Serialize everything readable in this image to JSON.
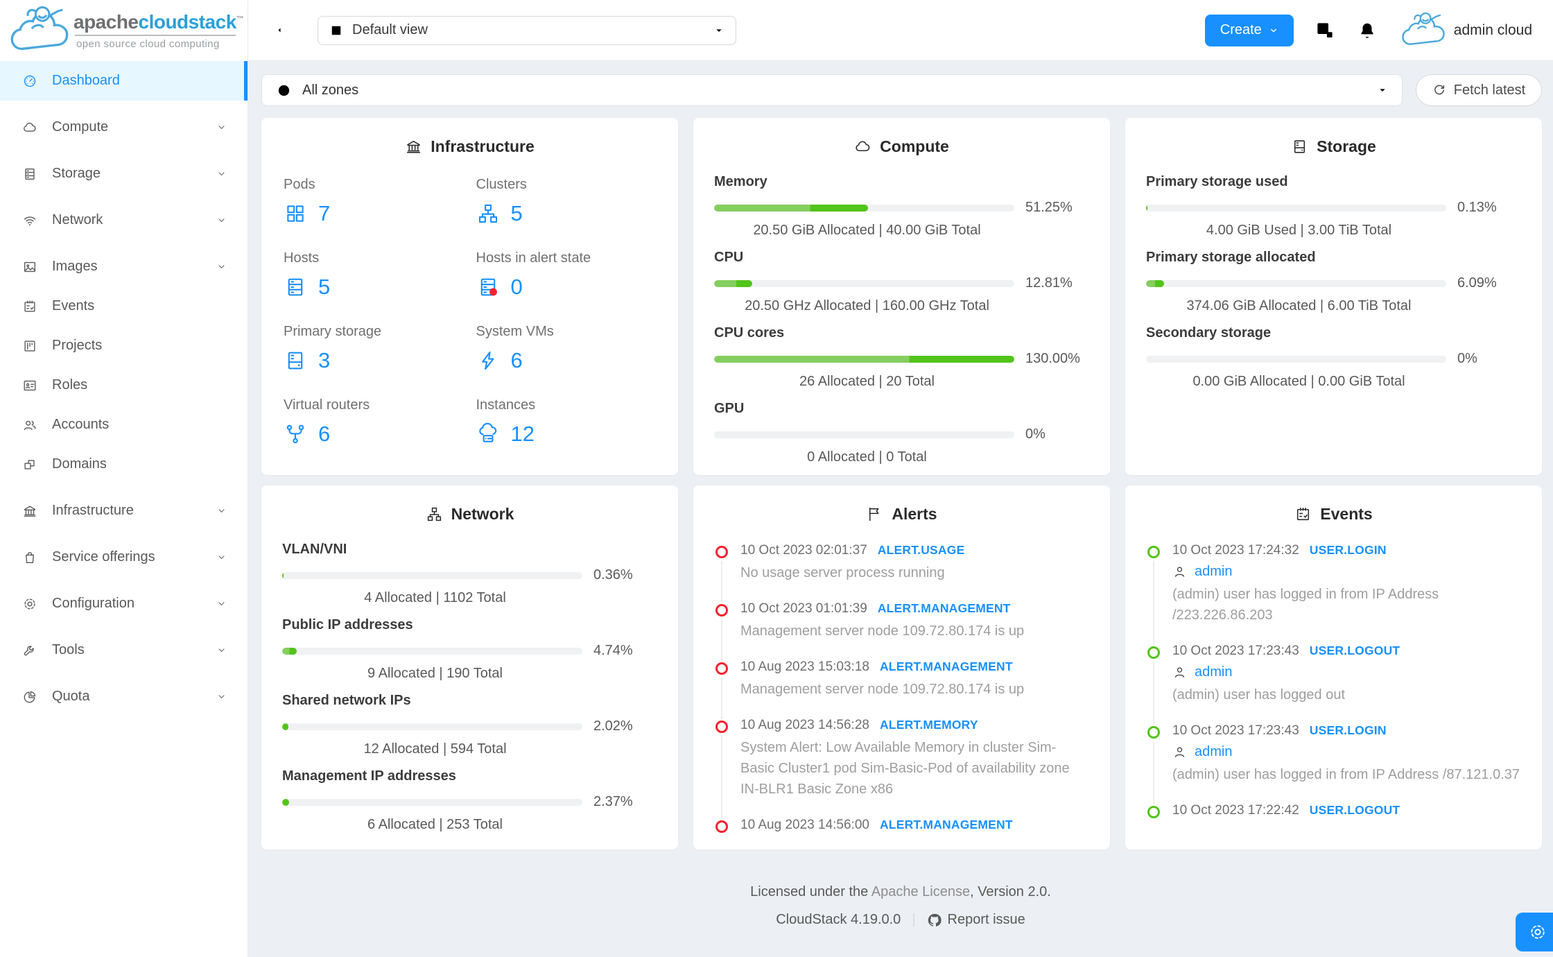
{
  "brand": {
    "name_part1": "apache",
    "name_part2": "cloudstack",
    "tm": "™",
    "tagline": "open source cloud computing"
  },
  "colors": {
    "primary": "#1890ff",
    "green_dark": "#52c41a",
    "green_light": "#85ce5f",
    "alert_red": "#f5222d",
    "event_green": "#52c41a"
  },
  "sidebar": {
    "items": [
      {
        "label": "Dashboard",
        "icon": "gauge",
        "active": true
      },
      {
        "label": "Compute",
        "icon": "cloud",
        "expandable": true,
        "group": true
      },
      {
        "label": "Storage",
        "icon": "database",
        "expandable": true,
        "group": true
      },
      {
        "label": "Network",
        "icon": "wifi",
        "expandable": true,
        "group": true
      },
      {
        "label": "Images",
        "icon": "image",
        "expandable": true,
        "group": true
      },
      {
        "label": "Events",
        "icon": "schedule"
      },
      {
        "label": "Projects",
        "icon": "project"
      },
      {
        "label": "Roles",
        "icon": "idcard"
      },
      {
        "label": "Accounts",
        "icon": "team"
      },
      {
        "label": "Domains",
        "icon": "blocks"
      },
      {
        "label": "Infrastructure",
        "icon": "bank",
        "expandable": true,
        "group": true
      },
      {
        "label": "Service offerings",
        "icon": "shopping",
        "expandable": true,
        "group": true
      },
      {
        "label": "Configuration",
        "icon": "gear",
        "expandable": true,
        "group": true
      },
      {
        "label": "Tools",
        "icon": "wrench",
        "expandable": true,
        "group": true
      },
      {
        "label": "Quota",
        "icon": "pie",
        "expandable": true,
        "group": true
      }
    ]
  },
  "header": {
    "view_label": "Default view",
    "create_label": "Create",
    "user_name": "admin cloud"
  },
  "zonebar": {
    "zone_label": "All zones",
    "fetch_label": "Fetch latest"
  },
  "cards": {
    "infrastructure": {
      "title": "Infrastructure",
      "stats": [
        {
          "label": "Pods",
          "value": "7",
          "icon": "appstore"
        },
        {
          "label": "Clusters",
          "value": "5",
          "icon": "cluster"
        },
        {
          "label": "Hosts",
          "value": "5",
          "icon": "database"
        },
        {
          "label": "Hosts in alert state",
          "value": "0",
          "icon": "database-alert"
        },
        {
          "label": "Primary storage",
          "value": "3",
          "icon": "hdd"
        },
        {
          "label": "System VMs",
          "value": "6",
          "icon": "bolt"
        },
        {
          "label": "Virtual routers",
          "value": "6",
          "icon": "fork"
        },
        {
          "label": "Instances",
          "value": "12",
          "icon": "cloudserver"
        }
      ]
    },
    "compute": {
      "title": "Compute",
      "metrics": [
        {
          "label": "Memory",
          "pct_label": "51.25%",
          "fill": 51.25,
          "light": 32,
          "info": "20.50 GiB Allocated | 40.00 GiB Total"
        },
        {
          "label": "CPU",
          "pct_label": "12.81%",
          "fill": 12.81,
          "light": 7.5,
          "info": "20.50 GHz Allocated | 160.00 GHz Total"
        },
        {
          "label": "CPU cores",
          "pct_label": "130.00%",
          "fill": 130,
          "light": 65,
          "info": "26 Allocated | 20 Total"
        },
        {
          "label": "GPU",
          "pct_label": "0%",
          "fill": 0,
          "light": 0,
          "info": "0 Allocated | 0 Total"
        }
      ]
    },
    "storage": {
      "title": "Storage",
      "metrics": [
        {
          "label": "Primary storage used",
          "pct_label": "0.13%",
          "fill": 0.13,
          "light": 0,
          "info": "4.00 GiB Used | 3.00 TiB Total"
        },
        {
          "label": "Primary storage allocated",
          "pct_label": "6.09%",
          "fill": 6.09,
          "light": 3,
          "info": "374.06 GiB Allocated | 6.00 TiB Total"
        },
        {
          "label": "Secondary storage",
          "pct_label": "0%",
          "fill": 0,
          "light": 0,
          "info": "0.00 GiB Allocated | 0.00 GiB Total"
        }
      ]
    },
    "network": {
      "title": "Network",
      "metrics": [
        {
          "label": "VLAN/VNI",
          "pct_label": "0.36%",
          "fill": 0.36,
          "light": 0,
          "info": "4 Allocated | 1102 Total"
        },
        {
          "label": "Public IP addresses",
          "pct_label": "4.74%",
          "fill": 4.74,
          "light": 2.4,
          "info": "9 Allocated | 190 Total"
        },
        {
          "label": "Shared network IPs",
          "pct_label": "2.02%",
          "fill": 2.02,
          "light": 0,
          "info": "12 Allocated | 594 Total"
        },
        {
          "label": "Management IP addresses",
          "pct_label": "2.37%",
          "fill": 2.37,
          "light": 0,
          "info": "6 Allocated | 253 Total"
        }
      ]
    },
    "alerts": {
      "title": "Alerts",
      "items": [
        {
          "time": "10 Oct 2023 02:01:37",
          "type": "ALERT.USAGE",
          "text": "No usage server process running"
        },
        {
          "time": "10 Oct 2023 01:01:39",
          "type": "ALERT.MANAGEMENT",
          "text": "Management server node 109.72.80.174 is up"
        },
        {
          "time": "10 Aug 2023 15:03:18",
          "type": "ALERT.MANAGEMENT",
          "text": "Management server node 109.72.80.174 is up"
        },
        {
          "time": "10 Aug 2023 14:56:28",
          "type": "ALERT.MEMORY",
          "text": "System Alert: Low Available Memory in cluster Sim-Basic Cluster1 pod Sim-Basic-Pod of availability zone IN-BLR1 Basic Zone x86"
        },
        {
          "time": "10 Aug 2023 14:56:00",
          "type": "ALERT.MANAGEMENT",
          "text": ""
        }
      ]
    },
    "events": {
      "title": "Events",
      "items": [
        {
          "time": "10 Oct 2023 17:24:32",
          "type": "USER.LOGIN",
          "user": "admin",
          "text": "(admin) user has logged in from IP Address /223.226.86.203"
        },
        {
          "time": "10 Oct 2023 17:23:43",
          "type": "USER.LOGOUT",
          "user": "admin",
          "text": "(admin) user has logged out"
        },
        {
          "time": "10 Oct 2023 17:23:43",
          "type": "USER.LOGIN",
          "user": "admin",
          "text": "(admin) user has logged in from IP Address /87.121.0.37"
        },
        {
          "time": "10 Oct 2023 17:22:42",
          "type": "USER.LOGOUT",
          "user": "",
          "text": ""
        }
      ]
    }
  },
  "footer": {
    "license_prefix": "Licensed under the ",
    "license_link": "Apache License",
    "license_suffix": ", Version 2.0.",
    "version": "CloudStack 4.19.0.0",
    "report_label": "Report issue"
  }
}
